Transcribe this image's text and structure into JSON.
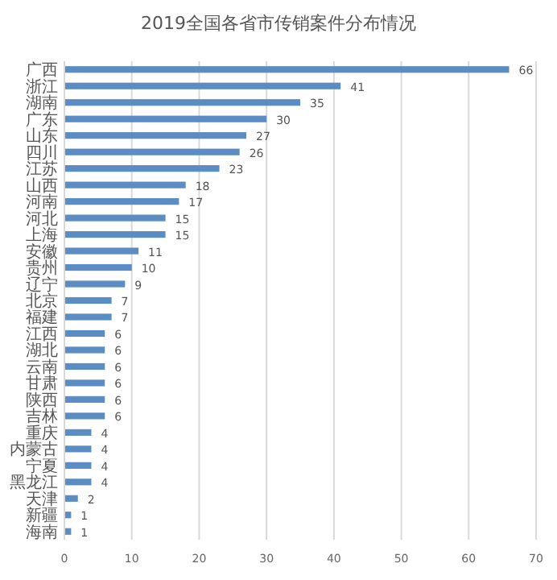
{
  "chart_data": {
    "type": "bar",
    "orientation": "horizontal",
    "title": "2019全国各省市传销案件分布情况",
    "categories": [
      "广西",
      "浙江",
      "湖南",
      "广东",
      "山东",
      "四川",
      "江苏",
      "山西",
      "河南",
      "河北",
      "上海",
      "安徽",
      "贵州",
      "辽宁",
      "北京",
      "福建",
      "江西",
      "湖北",
      "云南",
      "甘肃",
      "陕西",
      "吉林",
      "重庆",
      "内蒙古",
      "宁夏",
      "黑龙江",
      "天津",
      "新疆",
      "海南"
    ],
    "values": [
      66,
      41,
      35,
      30,
      27,
      26,
      23,
      18,
      17,
      15,
      15,
      11,
      10,
      9,
      7,
      7,
      6,
      6,
      6,
      6,
      6,
      6,
      4,
      4,
      4,
      4,
      2,
      1,
      1
    ],
    "color": "#5b8cc4",
    "xlim": [
      0,
      70
    ],
    "xticks": [
      0,
      10,
      20,
      30,
      40,
      50,
      60,
      70
    ],
    "grid": "x",
    "data_labels": true
  }
}
